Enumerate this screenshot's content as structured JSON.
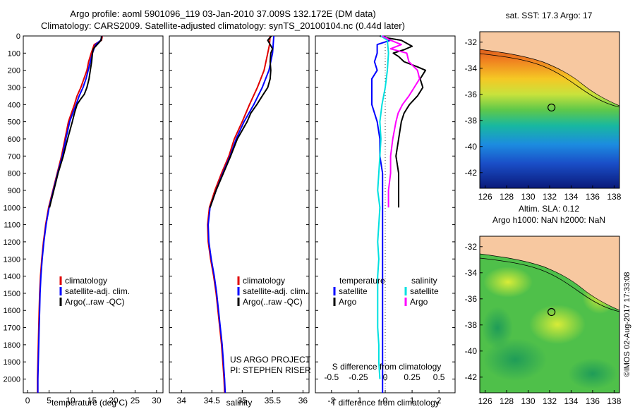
{
  "header": {
    "line1": "Argo profile: aoml 5901096_119 03-Jan-2010 37.009S 132.172E (DM data)",
    "line2": "Climatology: CARS2009. Satellite-adjusted climatology: synTS_20100104.nc (0.44d later)"
  },
  "credits": {
    "project": "US ARGO PROJECT",
    "pi": "PI: STEPHEN RISER",
    "imos": "©IMOS 02-Aug-2017 17:33:08"
  },
  "legends": {
    "panel_a": [
      "climatology",
      "satellite-adj. clim.",
      "Argo(..raw -QC)"
    ],
    "panel_b": [
      "climatology",
      "satellite-adj. clim.",
      "Argo(..raw -QC)"
    ],
    "panel_c_temp_title": "temperature",
    "panel_c_sal_title": "salinity",
    "panel_c_temp": [
      "satellite",
      "Argo"
    ],
    "panel_c_sal": [
      "satellite",
      "Argo"
    ]
  },
  "maps": {
    "top_title": "sat. SST: 17.3 Argo: 17",
    "bottom_title_1": "Altim. SLA: 0.12",
    "bottom_title_2": "Argo h1000: NaN h2000: NaN",
    "lon_ticks": [
      "126",
      "128",
      "130",
      "132",
      "134",
      "136",
      "138"
    ],
    "lat_ticks": [
      "-32",
      "-34",
      "-36",
      "-38",
      "-40",
      "-42"
    ],
    "lon_range": [
      125.5,
      138.5
    ],
    "lat_range": [
      -43.2,
      -31.2
    ],
    "argo_position": {
      "lon": 132.172,
      "lat": -37.009
    }
  },
  "colors": {
    "climatology": "#e00000",
    "satellite": "#0000ff",
    "argo": "#000000",
    "sal_satellite": "#00e0e0",
    "sal_argo": "#ff00ff",
    "land": "#f7c8a0"
  },
  "chart_data": [
    {
      "type": "line",
      "panel": "temperature",
      "xlabel": "temperature (deg C)",
      "ylabel": "",
      "xlim": [
        -1,
        31.5
      ],
      "ylim": [
        2080,
        0
      ],
      "xticks": [
        "0",
        "5",
        "10",
        "15",
        "20",
        "25",
        "30"
      ],
      "yticks": [
        "0",
        "100",
        "200",
        "300",
        "400",
        "500",
        "600",
        "700",
        "800",
        "900",
        "1000",
        "1100",
        "1200",
        "1300",
        "1400",
        "1500",
        "1600",
        "1700",
        "1800",
        "1900",
        "2000"
      ],
      "series": [
        {
          "name": "climatology",
          "color": "#e00000",
          "points": [
            [
              17.4,
              0
            ],
            [
              17.2,
              25
            ],
            [
              15.5,
              50
            ],
            [
              14.8,
              100
            ],
            [
              14.2,
              150
            ],
            [
              13.8,
              200
            ],
            [
              13.1,
              250
            ],
            [
              12.4,
              300
            ],
            [
              11.5,
              350
            ],
            [
              10.9,
              400
            ],
            [
              10.2,
              450
            ],
            [
              9.5,
              500
            ],
            [
              8.7,
              600
            ],
            [
              7.9,
              700
            ],
            [
              6.9,
              800
            ],
            [
              5.9,
              900
            ],
            [
              4.9,
              1000
            ],
            [
              4.2,
              1100
            ],
            [
              3.7,
              1200
            ],
            [
              3.3,
              1300
            ],
            [
              3.0,
              1400
            ],
            [
              2.8,
              1500
            ],
            [
              2.7,
              1600
            ],
            [
              2.6,
              1700
            ],
            [
              2.5,
              1800
            ],
            [
              2.4,
              1900
            ],
            [
              2.3,
              2000
            ],
            [
              2.3,
              2080
            ]
          ]
        },
        {
          "name": "satellite-adj. clim.",
          "color": "#0000ff",
          "points": [
            [
              17.3,
              0
            ],
            [
              17.0,
              25
            ],
            [
              15.8,
              50
            ],
            [
              15.1,
              100
            ],
            [
              14.6,
              150
            ],
            [
              14.1,
              200
            ],
            [
              13.6,
              250
            ],
            [
              12.9,
              300
            ],
            [
              12.0,
              350
            ],
            [
              11.3,
              400
            ],
            [
              10.5,
              450
            ],
            [
              9.8,
              500
            ],
            [
              8.9,
              600
            ],
            [
              8.1,
              700
            ],
            [
              7.0,
              800
            ],
            [
              6.0,
              900
            ],
            [
              5.0,
              1000
            ],
            [
              4.3,
              1100
            ],
            [
              3.8,
              1200
            ],
            [
              3.4,
              1300
            ],
            [
              3.1,
              1400
            ],
            [
              2.9,
              1500
            ],
            [
              2.8,
              1600
            ],
            [
              2.7,
              1700
            ],
            [
              2.6,
              1800
            ],
            [
              2.5,
              1900
            ],
            [
              2.4,
              2000
            ],
            [
              2.4,
              2080
            ]
          ]
        },
        {
          "name": "Argo(..raw -QC)",
          "color": "#000000",
          "points": [
            [
              17.2,
              0
            ],
            [
              17.1,
              25
            ],
            [
              16.2,
              50
            ],
            [
              15.3,
              75
            ],
            [
              15.1,
              100
            ],
            [
              14.9,
              150
            ],
            [
              14.6,
              200
            ],
            [
              14.3,
              250
            ],
            [
              13.8,
              300
            ],
            [
              13.2,
              340
            ],
            [
              12.3,
              370
            ],
            [
              11.5,
              400
            ],
            [
              10.9,
              450
            ],
            [
              10.4,
              500
            ],
            [
              9.3,
              600
            ],
            [
              8.3,
              700
            ],
            [
              7.1,
              800
            ],
            [
              6.1,
              900
            ],
            [
              5.1,
              1000
            ]
          ]
        }
      ]
    },
    {
      "type": "line",
      "panel": "salinity",
      "xlabel": "salinity",
      "ylabel": "",
      "xlim": [
        33.8,
        36.1
      ],
      "ylim": [
        2080,
        0
      ],
      "xticks": [
        "34",
        "34.5",
        "35",
        "35.5",
        "36"
      ],
      "series": [
        {
          "name": "climatology",
          "color": "#e00000",
          "points": [
            [
              35.46,
              0
            ],
            [
              35.45,
              50
            ],
            [
              35.42,
              100
            ],
            [
              35.36,
              200
            ],
            [
              35.25,
              300
            ],
            [
              35.12,
              400
            ],
            [
              35.0,
              500
            ],
            [
              34.87,
              600
            ],
            [
              34.78,
              700
            ],
            [
              34.66,
              800
            ],
            [
              34.55,
              900
            ],
            [
              34.46,
              1000
            ],
            [
              34.43,
              1100
            ],
            [
              34.44,
              1200
            ],
            [
              34.48,
              1300
            ],
            [
              34.53,
              1400
            ],
            [
              34.57,
              1500
            ],
            [
              34.6,
              1600
            ],
            [
              34.63,
              1700
            ],
            [
              34.66,
              1800
            ],
            [
              34.68,
              1900
            ],
            [
              34.7,
              2000
            ],
            [
              34.71,
              2080
            ]
          ]
        },
        {
          "name": "satellite-adj. clim.",
          "color": "#0000ff",
          "points": [
            [
              35.52,
              0
            ],
            [
              35.51,
              50
            ],
            [
              35.5,
              100
            ],
            [
              35.44,
              200
            ],
            [
              35.33,
              300
            ],
            [
              35.19,
              400
            ],
            [
              35.03,
              500
            ],
            [
              34.9,
              600
            ],
            [
              34.8,
              700
            ],
            [
              34.68,
              800
            ],
            [
              34.57,
              900
            ],
            [
              34.47,
              1000
            ],
            [
              34.44,
              1100
            ],
            [
              34.45,
              1200
            ],
            [
              34.49,
              1300
            ],
            [
              34.54,
              1400
            ],
            [
              34.58,
              1500
            ],
            [
              34.61,
              1600
            ],
            [
              34.64,
              1700
            ],
            [
              34.67,
              1800
            ],
            [
              34.69,
              1900
            ],
            [
              34.71,
              2000
            ],
            [
              34.72,
              2080
            ]
          ]
        },
        {
          "name": "Argo(..raw -QC)",
          "color": "#000000",
          "points": [
            [
              35.48,
              0
            ],
            [
              35.42,
              25
            ],
            [
              35.46,
              50
            ],
            [
              35.5,
              75
            ],
            [
              35.47,
              100
            ],
            [
              35.46,
              150
            ],
            [
              35.47,
              200
            ],
            [
              35.46,
              250
            ],
            [
              35.42,
              300
            ],
            [
              35.33,
              350
            ],
            [
              35.24,
              400
            ],
            [
              35.14,
              450
            ],
            [
              35.08,
              500
            ],
            [
              34.92,
              600
            ],
            [
              34.81,
              700
            ],
            [
              34.69,
              800
            ],
            [
              34.57,
              900
            ],
            [
              34.47,
              1000
            ]
          ]
        }
      ]
    },
    {
      "type": "line",
      "panel": "difference from climatology",
      "xlabel": "T difference from climatology",
      "xlabel_top": "S difference from climatology",
      "ylabel": "",
      "xlim": [
        -2.6,
        2.6
      ],
      "ylim": [
        2080,
        0
      ],
      "xticks": [
        "-2",
        "-1",
        "0",
        "1",
        "2"
      ],
      "xticks_salinity": [
        "-0.5",
        "-0.25",
        "0",
        "0.25",
        "0.5"
      ],
      "series": [
        {
          "name": "temperature satellite",
          "color": "#0000ff",
          "points": [
            [
              -0.1,
              0
            ],
            [
              0.2,
              25
            ],
            [
              -0.3,
              50
            ],
            [
              -0.3,
              100
            ],
            [
              -0.4,
              150
            ],
            [
              -0.3,
              200
            ],
            [
              -0.5,
              250
            ],
            [
              -0.5,
              300
            ],
            [
              -0.5,
              400
            ],
            [
              -0.3,
              500
            ],
            [
              -0.2,
              600
            ],
            [
              -0.2,
              700
            ],
            [
              -0.1,
              800
            ],
            [
              -0.1,
              900
            ],
            [
              -0.1,
              1000
            ],
            [
              -0.1,
              1100
            ],
            [
              -0.1,
              1200
            ],
            [
              -0.1,
              1300
            ],
            [
              -0.1,
              1400
            ],
            [
              -0.1,
              1500
            ],
            [
              -0.1,
              1600
            ],
            [
              -0.1,
              1700
            ],
            [
              -0.1,
              1800
            ],
            [
              -0.1,
              1900
            ],
            [
              -0.1,
              2000
            ],
            [
              -0.1,
              2080
            ]
          ]
        },
        {
          "name": "temperature Argo",
          "color": "#000000",
          "points": [
            [
              -0.2,
              0
            ],
            [
              0.0,
              10
            ],
            [
              0.6,
              25
            ],
            [
              1.0,
              60
            ],
            [
              0.7,
              80
            ],
            [
              0.3,
              100
            ],
            [
              0.5,
              120
            ],
            [
              0.7,
              150
            ],
            [
              1.2,
              180
            ],
            [
              1.5,
              200
            ],
            [
              1.3,
              250
            ],
            [
              1.4,
              300
            ],
            [
              1.2,
              350
            ],
            [
              0.9,
              400
            ],
            [
              0.7,
              450
            ],
            [
              0.6,
              500
            ],
            [
              0.5,
              600
            ],
            [
              0.4,
              700
            ],
            [
              0.5,
              800
            ],
            [
              0.5,
              900
            ],
            [
              0.5,
              1000
            ]
          ]
        },
        {
          "name": "salinity satellite",
          "color": "#00e0e0",
          "points": [
            [
              -0.04,
              0
            ],
            [
              0.02,
              25
            ],
            [
              0.03,
              100
            ],
            [
              0.02,
              200
            ],
            [
              0.0,
              300
            ],
            [
              -0.03,
              400
            ],
            [
              -0.05,
              500
            ],
            [
              -0.04,
              600
            ],
            [
              -0.05,
              700
            ],
            [
              -0.06,
              800
            ],
            [
              -0.07,
              900
            ],
            [
              -0.05,
              1000
            ],
            [
              -0.06,
              1100
            ],
            [
              -0.07,
              1200
            ],
            [
              -0.06,
              1300
            ],
            [
              -0.07,
              1400
            ],
            [
              -0.07,
              1500
            ],
            [
              -0.07,
              1600
            ],
            [
              -0.07,
              1700
            ],
            [
              -0.06,
              1800
            ],
            [
              -0.06,
              1900
            ],
            [
              -0.05,
              2000
            ]
          ]
        },
        {
          "name": "salinity Argo",
          "color": "#ff00ff",
          "points": [
            [
              -0.03,
              0
            ],
            [
              0.05,
              25
            ],
            [
              0.15,
              50
            ],
            [
              0.05,
              75
            ],
            [
              0.2,
              100
            ],
            [
              0.22,
              150
            ],
            [
              0.3,
              200
            ],
            [
              0.32,
              250
            ],
            [
              0.27,
              300
            ],
            [
              0.22,
              350
            ],
            [
              0.16,
              400
            ],
            [
              0.12,
              450
            ],
            [
              0.1,
              500
            ],
            [
              0.07,
              600
            ],
            [
              0.05,
              700
            ],
            [
              0.05,
              800
            ],
            [
              0.03,
              900
            ],
            [
              0.03,
              1000
            ]
          ]
        }
      ]
    }
  ]
}
